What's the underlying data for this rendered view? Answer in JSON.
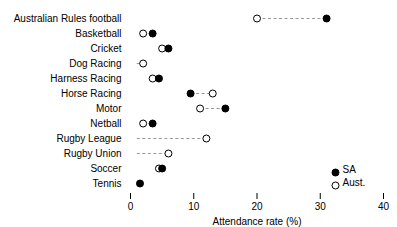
{
  "chart_data": {
    "type": "dot",
    "categories": [
      "Australian Rules football",
      "Basketball",
      "Cricket",
      "Dog Racing",
      "Harness Racing",
      "Horse Racing",
      "Motor",
      "Netball",
      "Rugby League",
      "Rugby Union",
      "Soccer",
      "Tennis"
    ],
    "series": [
      {
        "name": "SA",
        "color": "#000000",
        "marker": "filled",
        "values": [
          31.0,
          3.5,
          6.0,
          null,
          4.5,
          9.5,
          15.0,
          3.5,
          null,
          null,
          5.0,
          1.5
        ]
      },
      {
        "name": "Aust.",
        "color": "#000000",
        "marker": "open",
        "values": [
          20.0,
          2.0,
          5.0,
          2.0,
          3.5,
          13.0,
          11.0,
          2.0,
          12.0,
          6.0,
          4.5,
          null
        ]
      }
    ],
    "dashed_start": 1.0,
    "line_style": "dashed",
    "xlabel": "Attendance rate (%)",
    "xlim": [
      0,
      40
    ],
    "xticks": [
      0,
      10,
      20,
      30,
      40
    ],
    "legend": "lower right",
    "grid": false
  }
}
